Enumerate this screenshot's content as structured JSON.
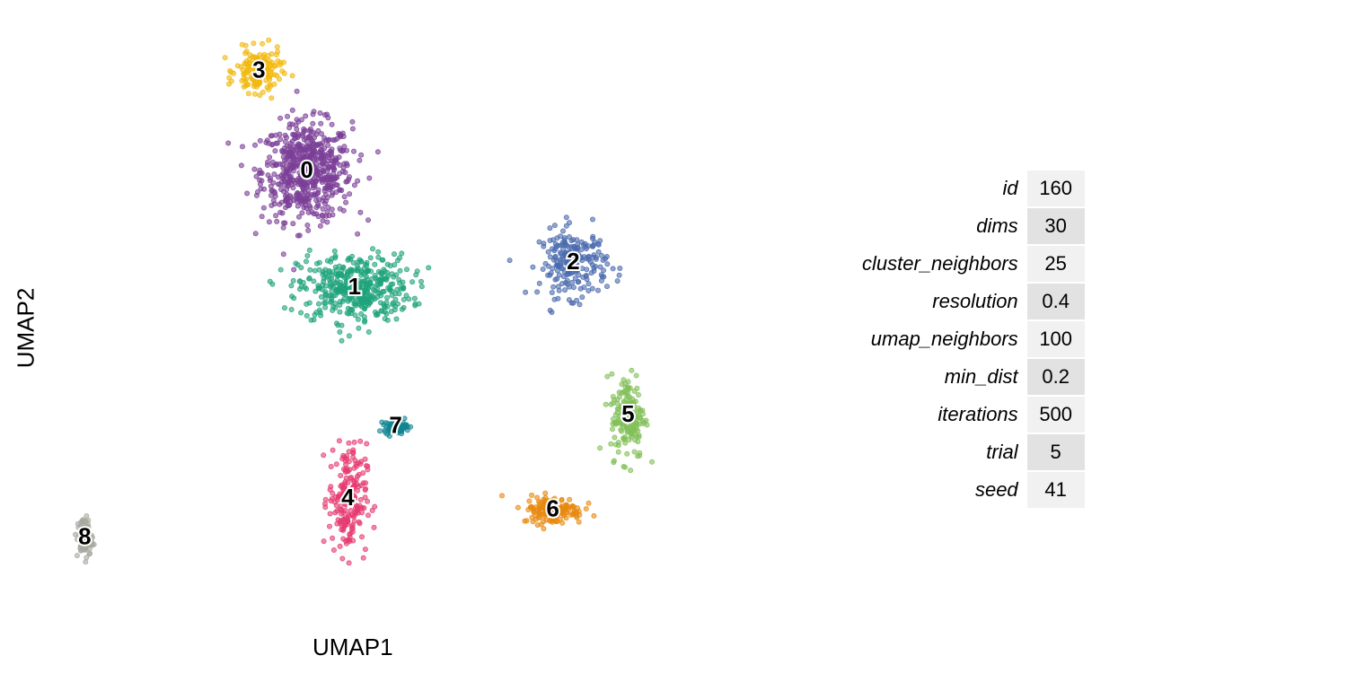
{
  "chart_data": {
    "type": "scatter",
    "xlabel": "UMAP1",
    "ylabel": "UMAP2",
    "grid": false,
    "legend": "none",
    "clusters": [
      {
        "label": "0",
        "color": "#7b3f98",
        "centroid": [
          -4.6,
          7.8
        ],
        "spread": [
          1.2,
          1.6
        ],
        "n": 620
      },
      {
        "label": "1",
        "color": "#1ea37a",
        "centroid": [
          -3.2,
          3.6
        ],
        "spread": [
          1.5,
          1.1
        ],
        "n": 420
      },
      {
        "label": "2",
        "color": "#4a6aae",
        "centroid": [
          3.2,
          4.5
        ],
        "spread": [
          0.9,
          1.1
        ],
        "n": 220
      },
      {
        "label": "3",
        "color": "#f1b70b",
        "centroid": [
          -6.0,
          11.4
        ],
        "spread": [
          0.6,
          0.7
        ],
        "n": 160
      },
      {
        "label": "4",
        "color": "#e63a70",
        "centroid": [
          -3.4,
          -4.0
        ],
        "spread": [
          0.5,
          1.8
        ],
        "n": 200
      },
      {
        "label": "5",
        "color": "#82bf58",
        "centroid": [
          4.8,
          -1.0
        ],
        "spread": [
          0.45,
          1.4
        ],
        "n": 170
      },
      {
        "label": "6",
        "color": "#e8890f",
        "centroid": [
          2.6,
          -4.4
        ],
        "spread": [
          0.8,
          0.45
        ],
        "n": 150
      },
      {
        "label": "7",
        "color": "#138592",
        "centroid": [
          -2.0,
          -1.4
        ],
        "spread": [
          0.3,
          0.2
        ],
        "n": 90
      },
      {
        "label": "8",
        "color": "#a7a89f",
        "centroid": [
          -11.1,
          -5.4
        ],
        "spread": [
          0.2,
          0.7
        ],
        "n": 80
      }
    ],
    "xlim": [
      -12,
      6
    ],
    "ylim": [
      -8,
      13
    ]
  },
  "params": [
    {
      "name": "id",
      "value": "160"
    },
    {
      "name": "dims",
      "value": "30"
    },
    {
      "name": "cluster_neighbors",
      "value": "25"
    },
    {
      "name": "resolution",
      "value": "0.4"
    },
    {
      "name": "umap_neighbors",
      "value": "100"
    },
    {
      "name": "min_dist",
      "value": "0.2"
    },
    {
      "name": "iterations",
      "value": "500"
    },
    {
      "name": "trial",
      "value": "5"
    },
    {
      "name": "seed",
      "value": "41"
    }
  ],
  "colors": {
    "row_light": "#f1f1f1",
    "row_dark": "#e2e2e2"
  }
}
